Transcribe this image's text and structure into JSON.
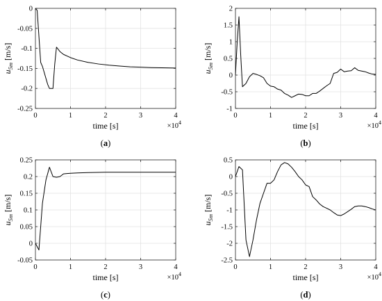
{
  "chart_data": [
    {
      "type": "line",
      "caption": [
        "(",
        "a",
        ")"
      ],
      "xlabel": "time [s]",
      "ylabel_main": "u",
      "ylabel_sub": "5m",
      "ylabel_units": " [m/s]",
      "x_exponent_base": "×10",
      "x_exponent_power": "4",
      "xlim": [
        0,
        40000
      ],
      "ylim": [
        -0.25,
        0
      ],
      "xticks": [
        0,
        10000,
        20000,
        30000,
        40000
      ],
      "xtick_labels": [
        "0",
        "1",
        "2",
        "3",
        "4"
      ],
      "yticks": [
        0,
        -0.05,
        -0.1,
        -0.15,
        -0.2,
        -0.25
      ],
      "ytick_labels": [
        "0",
        "-0.05",
        "-0.1",
        "-0.15",
        "-0.2",
        "-0.25"
      ],
      "grid": true,
      "color": "#000000",
      "x": [
        0,
        500,
        1000,
        1500,
        2000,
        2500,
        3000,
        3500,
        4000,
        4500,
        5000,
        5500,
        6000,
        7000,
        8000,
        10000,
        12000,
        15000,
        18000,
        21000,
        24000,
        27000,
        30000,
        33000,
        36000,
        40000
      ],
      "y": [
        0,
        -0.005,
        -0.07,
        -0.135,
        -0.145,
        -0.16,
        -0.175,
        -0.19,
        -0.2,
        -0.2,
        -0.2,
        -0.14,
        -0.097,
        -0.108,
        -0.115,
        -0.123,
        -0.129,
        -0.135,
        -0.139,
        -0.142,
        -0.144,
        -0.146,
        -0.147,
        -0.148,
        -0.1485,
        -0.149
      ]
    },
    {
      "type": "line",
      "caption": [
        "(",
        "b",
        ")"
      ],
      "xlabel": "time [s]",
      "ylabel_main": "u",
      "ylabel_sub": "5m",
      "ylabel_units": " [m/s]",
      "x_exponent_base": "×10",
      "x_exponent_power": "4",
      "xlim": [
        0,
        40000
      ],
      "ylim": [
        -1,
        2
      ],
      "xticks": [
        0,
        10000,
        20000,
        30000,
        40000
      ],
      "xtick_labels": [
        "0",
        "1",
        "2",
        "3",
        "4"
      ],
      "yticks": [
        2,
        1.5,
        1,
        0.5,
        0,
        -0.5,
        -1
      ],
      "ytick_labels": [
        "2",
        "1.5",
        "1",
        "0.5",
        "0",
        "-0.5",
        "-1"
      ],
      "grid": true,
      "color": "#000000",
      "x": [
        0,
        500,
        1000,
        1500,
        2000,
        2500,
        3000,
        4000,
        5000,
        6000,
        7000,
        8000,
        9000,
        10000,
        11000,
        12000,
        13000,
        14000,
        15000,
        16000,
        17000,
        18000,
        19000,
        20000,
        21000,
        22000,
        23000,
        24000,
        25000,
        26000,
        27000,
        28000,
        29000,
        30000,
        31000,
        32000,
        33000,
        34000,
        35000,
        36000,
        37000,
        38000,
        39000,
        40000
      ],
      "y": [
        0,
        1.0,
        1.75,
        0.6,
        -0.35,
        -0.3,
        -0.25,
        -0.05,
        0.05,
        0.02,
        -0.02,
        -0.08,
        -0.25,
        -0.33,
        -0.35,
        -0.42,
        -0.45,
        -0.55,
        -0.6,
        -0.67,
        -0.62,
        -0.57,
        -0.58,
        -0.62,
        -0.62,
        -0.55,
        -0.55,
        -0.48,
        -0.4,
        -0.32,
        -0.25,
        0.05,
        0.08,
        0.18,
        0.1,
        0.12,
        0.13,
        0.22,
        0.14,
        0.12,
        0.1,
        0.06,
        0.03,
        0.02
      ]
    },
    {
      "type": "line",
      "caption": [
        "(",
        "c",
        ")"
      ],
      "xlabel": "time [s]",
      "ylabel_main": "u",
      "ylabel_sub": "5m",
      "ylabel_units": " [m/s]",
      "x_exponent_base": "×10",
      "x_exponent_power": "4",
      "xlim": [
        0,
        40000
      ],
      "ylim": [
        -0.05,
        0.25
      ],
      "xticks": [
        0,
        10000,
        20000,
        30000,
        40000
      ],
      "xtick_labels": [
        "0",
        "1",
        "2",
        "3",
        "4"
      ],
      "yticks": [
        0.25,
        0.2,
        0.15,
        0.1,
        0.05,
        0,
        -0.05
      ],
      "ytick_labels": [
        "0.25",
        "0.2",
        "0.15",
        "0.1",
        "0.05",
        "0",
        "-0.05"
      ],
      "grid": true,
      "color": "#000000",
      "x": [
        0,
        1000,
        2000,
        3000,
        4000,
        5000,
        6000,
        7000,
        8000,
        9000,
        10000,
        12000,
        15000,
        20000,
        25000,
        30000,
        35000,
        40000
      ],
      "y": [
        0,
        -0.02,
        0.12,
        0.19,
        0.228,
        0.2,
        0.198,
        0.2,
        0.208,
        0.209,
        0.21,
        0.211,
        0.212,
        0.213,
        0.213,
        0.213,
        0.213,
        0.213
      ]
    },
    {
      "type": "line",
      "caption": [
        "(",
        "d",
        ")"
      ],
      "xlabel": "time [s]",
      "ylabel_main": "u",
      "ylabel_sub": "5m",
      "ylabel_units": " [m/s]",
      "x_exponent_base": "×10",
      "x_exponent_power": "4",
      "xlim": [
        0,
        40000
      ],
      "ylim": [
        -2.5,
        0.5
      ],
      "xticks": [
        0,
        10000,
        20000,
        30000,
        40000
      ],
      "xtick_labels": [
        "0",
        "1",
        "2",
        "3",
        "4"
      ],
      "yticks": [
        0.5,
        0,
        -0.5,
        -1,
        -1.5,
        -2,
        -2.5
      ],
      "ytick_labels": [
        "0.5",
        "0",
        "-0.5",
        "-1",
        "-1.5",
        "-2",
        "-2.5"
      ],
      "grid": true,
      "color": "#000000",
      "x": [
        0,
        1000,
        2000,
        3000,
        4000,
        5000,
        6000,
        7000,
        8000,
        9000,
        10000,
        11000,
        12000,
        13000,
        14000,
        15000,
        16000,
        17000,
        18000,
        19000,
        20000,
        21000,
        22000,
        23000,
        24000,
        25000,
        26000,
        27000,
        28000,
        29000,
        30000,
        31000,
        32000,
        33000,
        34000,
        35000,
        36000,
        37000,
        38000,
        39000,
        40000
      ],
      "y": [
        0,
        0.3,
        0.2,
        -1.9,
        -2.4,
        -1.9,
        -1.3,
        -0.8,
        -0.5,
        -0.2,
        -0.2,
        -0.1,
        0.15,
        0.35,
        0.42,
        0.38,
        0.28,
        0.15,
        0.0,
        -0.1,
        -0.25,
        -0.3,
        -0.6,
        -0.7,
        -0.82,
        -0.9,
        -0.95,
        -1.0,
        -1.08,
        -1.15,
        -1.17,
        -1.12,
        -1.05,
        -0.98,
        -0.9,
        -0.88,
        -0.88,
        -0.9,
        -0.93,
        -0.97,
        -1.0
      ]
    }
  ]
}
